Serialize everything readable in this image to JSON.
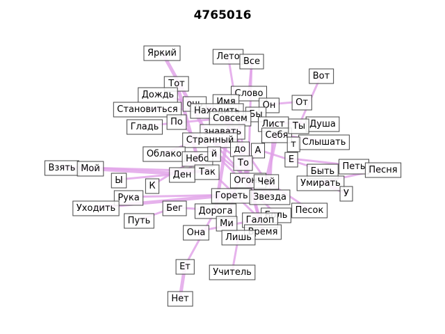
{
  "title": "4765016",
  "edge_color": "#e0a0e8",
  "nodes": [
    {
      "id": "yarkiy",
      "label": "Яркий"
    },
    {
      "id": "leto",
      "label": "Лето"
    },
    {
      "id": "vse",
      "label": "Все"
    },
    {
      "id": "vot",
      "label": "Вот"
    },
    {
      "id": "tot",
      "label": "Тот"
    },
    {
      "id": "slovo",
      "label": "Слово"
    },
    {
      "id": "dozhd",
      "label": "Дождь"
    },
    {
      "id": "noch_top",
      "label": "очь"
    },
    {
      "id": "imya",
      "label": "Имя"
    },
    {
      "id": "on",
      "label": "Он"
    },
    {
      "id": "ot",
      "label": "От"
    },
    {
      "id": "stanovitsya",
      "label": "Становиться"
    },
    {
      "id": "nahodit",
      "label": "Находить"
    },
    {
      "id": "by",
      "label": "Бы"
    },
    {
      "id": "sovsem",
      "label": "Совсем"
    },
    {
      "id": "po",
      "label": "По"
    },
    {
      "id": "list",
      "label": "Лист"
    },
    {
      "id": "dusha",
      "label": "Душа"
    },
    {
      "id": "glad",
      "label": "Гладь"
    },
    {
      "id": "znavat",
      "label": "знавать"
    },
    {
      "id": "sebya",
      "label": "Себя"
    },
    {
      "id": "ty",
      "label": "Ты"
    },
    {
      "id": "strannyy",
      "label": "Странный"
    },
    {
      "id": "slyshat",
      "label": "Слышать"
    },
    {
      "id": "do",
      "label": "до"
    },
    {
      "id": "a_mid",
      "label": "А"
    },
    {
      "id": "t_mid",
      "label": "т"
    },
    {
      "id": "oblako",
      "label": "Облако"
    },
    {
      "id": "nebo",
      "label": "Небо"
    },
    {
      "id": "y_mid",
      "label": "й"
    },
    {
      "id": "e_mid",
      "label": "Е"
    },
    {
      "id": "vzyat",
      "label": "Взять"
    },
    {
      "id": "moy",
      "label": "Мой"
    },
    {
      "id": "to",
      "label": "То"
    },
    {
      "id": "pet",
      "label": "Петь"
    },
    {
      "id": "pesnya",
      "label": "Песня"
    },
    {
      "id": "den",
      "label": "Ден"
    },
    {
      "id": "tak",
      "label": "Так"
    },
    {
      "id": "byt",
      "label": "Быть"
    },
    {
      "id": "y_left",
      "label": "Ы"
    },
    {
      "id": "k",
      "label": "К"
    },
    {
      "id": "ogon",
      "label": "Огонь"
    },
    {
      "id": "chey",
      "label": "Чей"
    },
    {
      "id": "umirat",
      "label": "Умирать"
    },
    {
      "id": "u",
      "label": "У"
    },
    {
      "id": "ruka",
      "label": "Рука"
    },
    {
      "id": "goret",
      "label": "Гореть"
    },
    {
      "id": "zvezda",
      "label": "Звезда"
    },
    {
      "id": "uhodit",
      "label": "Уходить"
    },
    {
      "id": "beg",
      "label": "Бег"
    },
    {
      "id": "doroga",
      "label": "Дорога"
    },
    {
      "id": "pesok",
      "label": "Песок"
    },
    {
      "id": "put",
      "label": "Путь"
    },
    {
      "id": "bol",
      "label": "Боль"
    },
    {
      "id": "galop",
      "label": "Галоп"
    },
    {
      "id": "mir",
      "label": "Ми"
    },
    {
      "id": "ona",
      "label": "Она"
    },
    {
      "id": "vremya",
      "label": "Время"
    },
    {
      "id": "lish",
      "label": "Лишь"
    },
    {
      "id": "et",
      "label": "Ет"
    },
    {
      "id": "uchitel",
      "label": "Учитель"
    },
    {
      "id": "net",
      "label": "Нет"
    }
  ]
}
